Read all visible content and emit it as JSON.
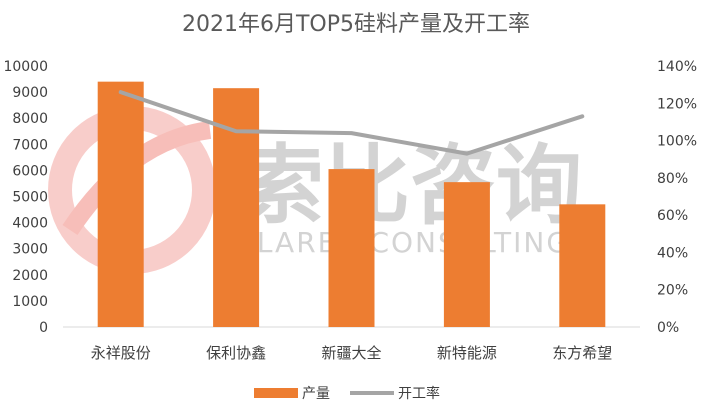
{
  "chart_data": {
    "type": "bar",
    "title": "2021年6月TOP5硅料产量及开工率",
    "categories": [
      "永祥股份",
      "保利协鑫",
      "新疆大全",
      "新特能源",
      "东方希望"
    ],
    "series": [
      {
        "name": "产量",
        "kind": "bar",
        "axis": "left",
        "color": "#ED7D31",
        "values": [
          9400,
          9150,
          6050,
          5550,
          4700
        ]
      },
      {
        "name": "开工率",
        "kind": "line",
        "axis": "right",
        "color": "#A5A5A5",
        "values": [
          1.26,
          1.05,
          1.04,
          0.93,
          1.13
        ]
      }
    ],
    "y_left": {
      "min": 0,
      "max": 10000,
      "ticks": [
        "0",
        "1000",
        "2000",
        "3000",
        "4000",
        "5000",
        "6000",
        "7000",
        "8000",
        "9000",
        "10000"
      ]
    },
    "y_right": {
      "min": 0,
      "max": 1.4,
      "ticks": [
        "0%",
        "20%",
        "40%",
        "60%",
        "80%",
        "100%",
        "120%",
        "140%"
      ]
    },
    "grid": false,
    "legend_position": "bottom",
    "watermark": {
      "logo_text": "索比咨询",
      "text": "SOLARBE CONSULTING"
    }
  }
}
